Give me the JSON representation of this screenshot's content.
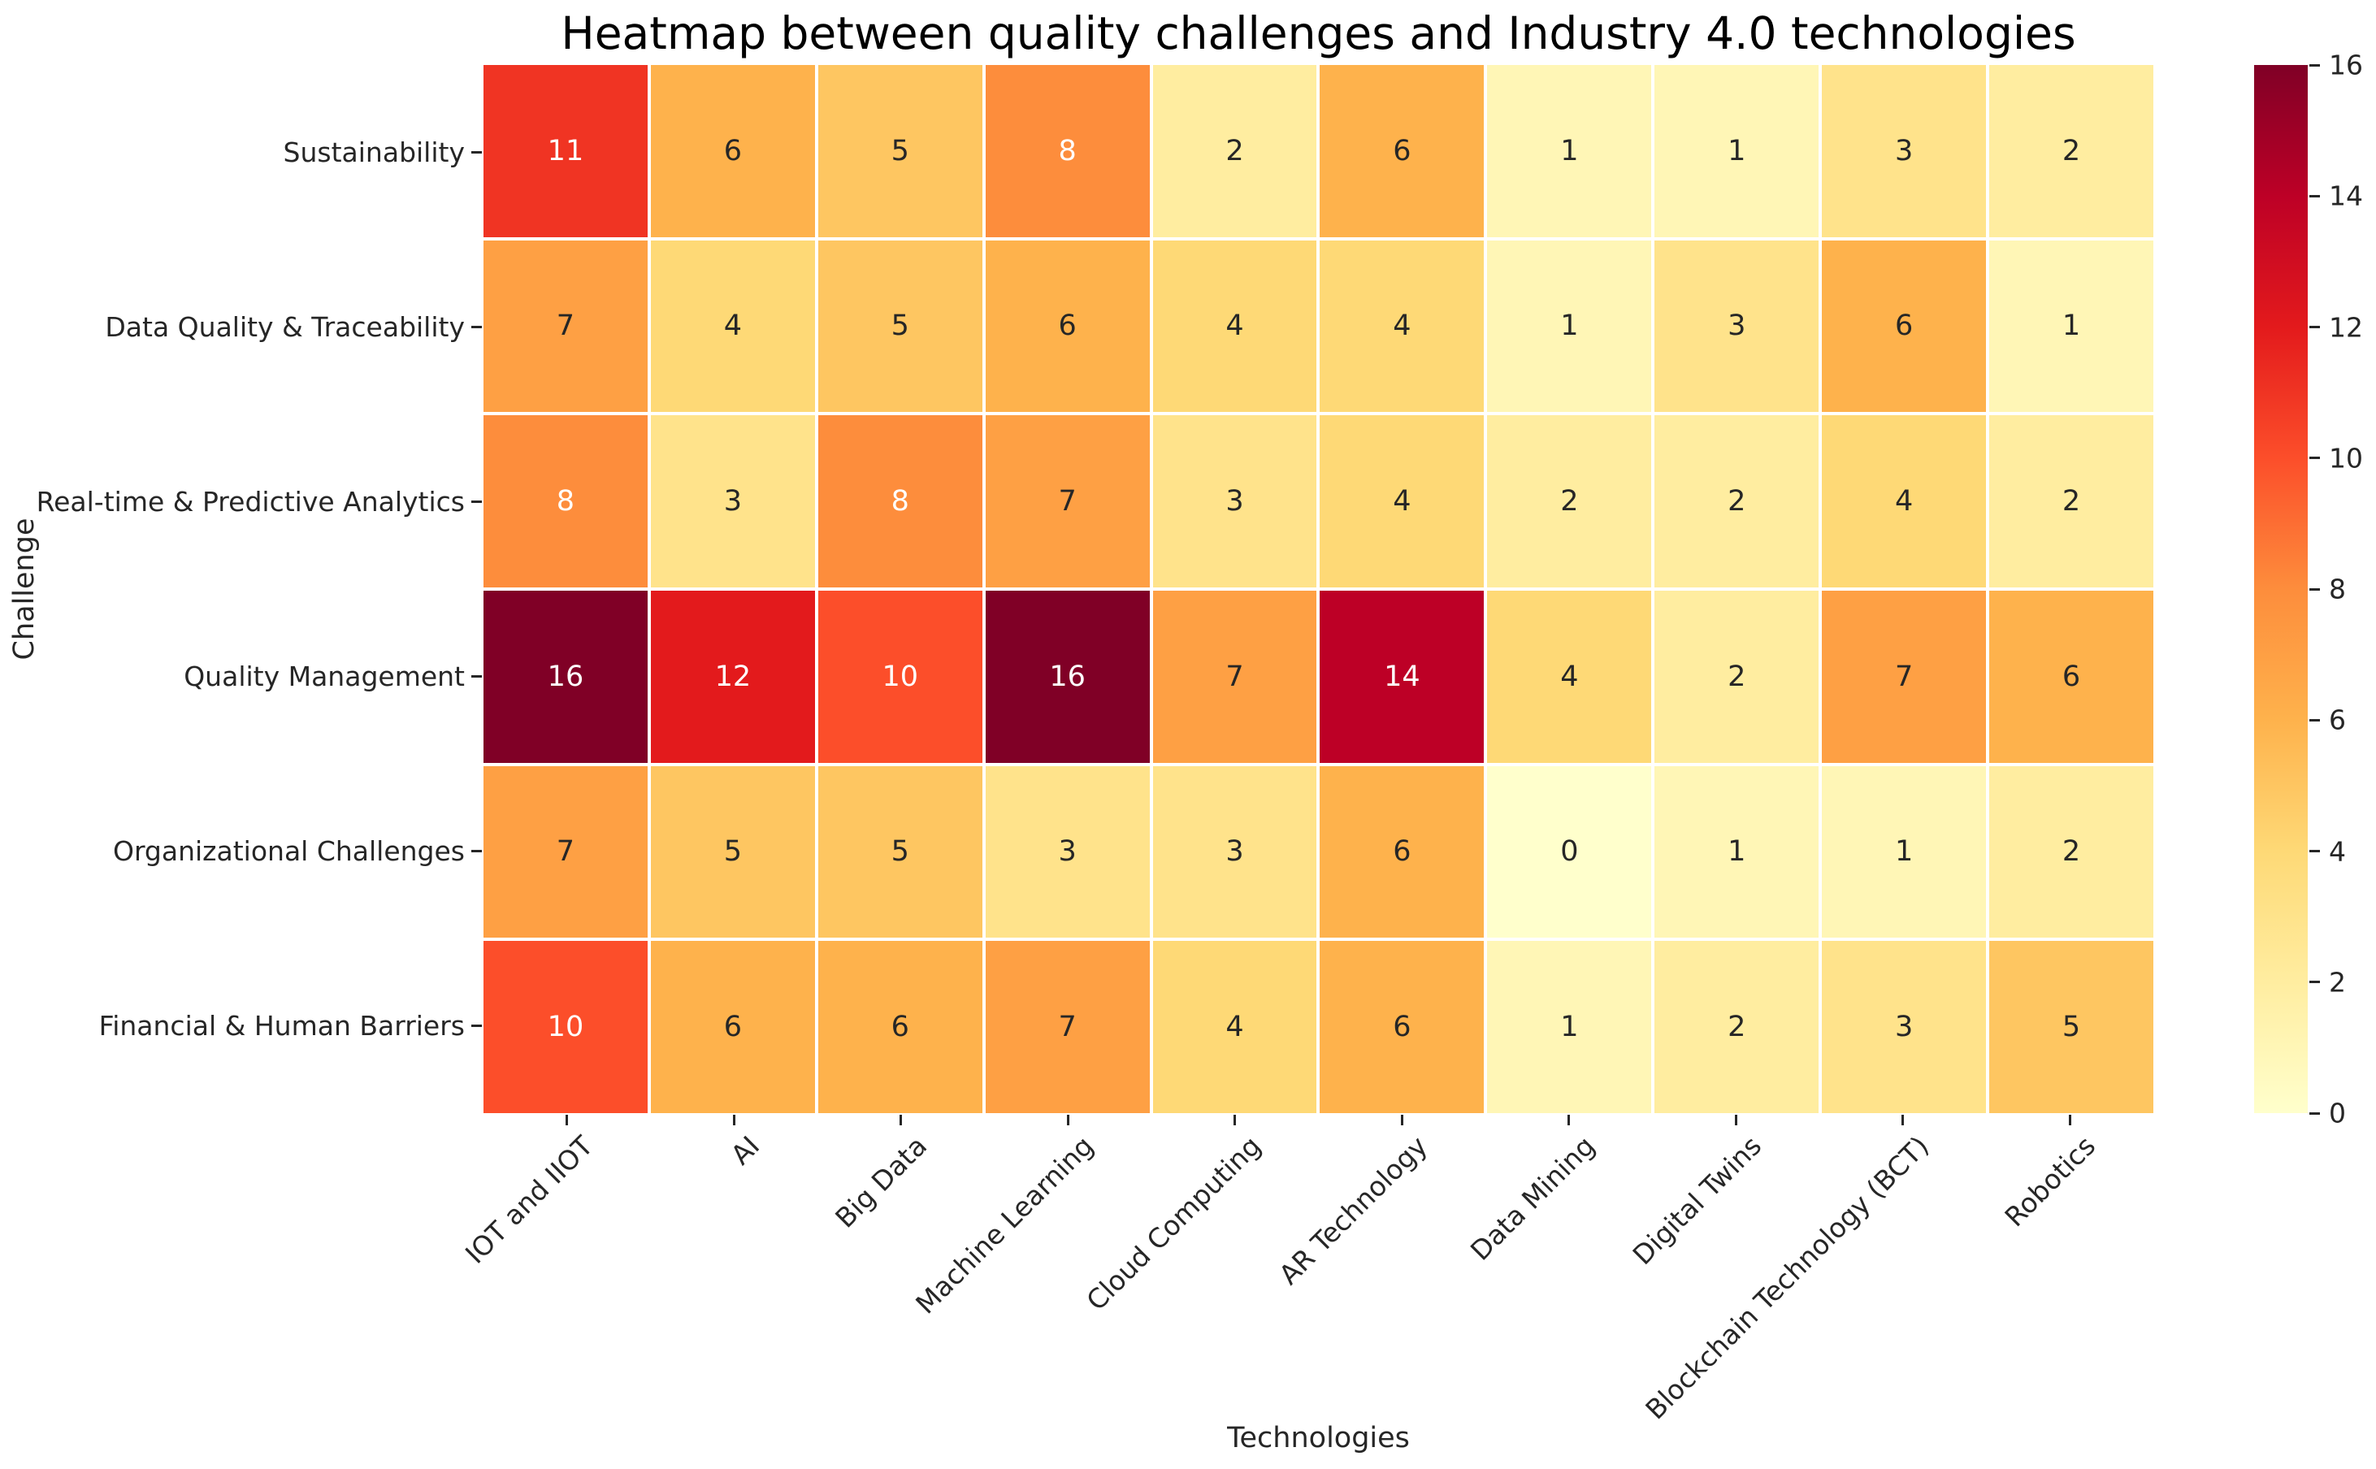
{
  "chart_data": {
    "type": "heatmap",
    "title": "Heatmap between quality challenges and Industry 4.0 technologies",
    "xlabel": "Technologies",
    "ylabel": "Challenge",
    "x_categories": [
      "IOT and IIOT",
      "AI",
      "Big Data",
      "Machine Learning",
      "Cloud Computing",
      "AR Technology",
      "Data Mining",
      "Digital Twins",
      "Blockchain Technology (BCT)",
      "Robotics"
    ],
    "y_categories": [
      "Sustainability",
      "Data Quality & Traceability",
      "Real-time & Predictive Analytics",
      "Quality Management",
      "Organizational Challenges",
      "Financial & Human Barriers"
    ],
    "values": [
      [
        11,
        6,
        5,
        8,
        2,
        6,
        1,
        1,
        3,
        2
      ],
      [
        7,
        4,
        5,
        6,
        4,
        4,
        1,
        3,
        6,
        1
      ],
      [
        8,
        3,
        8,
        7,
        3,
        4,
        2,
        2,
        4,
        2
      ],
      [
        16,
        12,
        10,
        16,
        7,
        14,
        4,
        2,
        7,
        6
      ],
      [
        7,
        5,
        5,
        3,
        3,
        6,
        0,
        1,
        1,
        2
      ],
      [
        10,
        6,
        6,
        7,
        4,
        6,
        1,
        2,
        3,
        5
      ]
    ],
    "vmin": 0,
    "vmax": 16,
    "colorbar_ticks": [
      0,
      2,
      4,
      6,
      8,
      10,
      12,
      14,
      16
    ],
    "legend_position": "right",
    "grid": false,
    "colormap": {
      "name": "YlOrRd",
      "stops": [
        "#ffffcc",
        "#ffeda0",
        "#fed976",
        "#feb24c",
        "#fd8d3c",
        "#fc4e2a",
        "#e31a1c",
        "#bd0026",
        "#800026"
      ]
    },
    "annotation_colors": {
      "on_light": "#262626",
      "on_dark": "#ffffff"
    }
  }
}
